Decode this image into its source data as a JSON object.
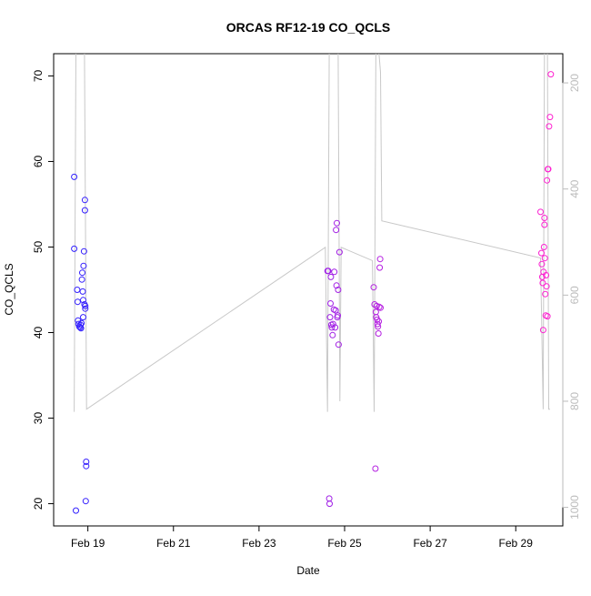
{
  "chart_data": {
    "type": "scatter",
    "title": "ORCAS RF12-19 CO_QCLS",
    "xlabel": "Date",
    "ylabel": "CO_QCLS",
    "x_ticks": [
      "Feb 19",
      "Feb 21",
      "Feb 23",
      "Feb 25",
      "Feb 27",
      "Feb 29"
    ],
    "x_ticks_days": [
      19,
      21,
      23,
      25,
      27,
      29
    ],
    "x_range_days": [
      18.2,
      30.1
    ],
    "y_ticks": [
      "20",
      "30",
      "40",
      "50",
      "60",
      "70"
    ],
    "y_ticks_values": [
      20,
      30,
      40,
      50,
      60,
      70
    ],
    "ylim": [
      17.4,
      72.6
    ],
    "y2_ticks": [
      "200",
      "400",
      "600",
      "800",
      "1000"
    ],
    "y2_ticks_values": [
      200,
      400,
      600,
      800,
      1000
    ],
    "y2lim": [
      1035,
      145
    ],
    "grid": false,
    "legend": "none",
    "colors": {
      "start": "#3020ff",
      "end": "#ff20d0",
      "secondary": "#c8c8c8",
      "axis": "#000000",
      "axis2": "#bbbbbb"
    },
    "series": [
      {
        "values": [
          [
            18.68,
            58.2
          ],
          [
            18.68,
            49.8
          ],
          [
            18.72,
            19.2
          ],
          [
            18.75,
            45.0
          ],
          [
            18.76,
            43.6
          ],
          [
            18.77,
            41.4
          ],
          [
            18.78,
            41.0
          ],
          [
            18.8,
            40.7
          ],
          [
            18.82,
            40.6
          ],
          [
            18.83,
            40.9
          ],
          [
            18.84,
            40.5
          ],
          [
            18.85,
            41.1
          ],
          [
            18.86,
            46.2
          ],
          [
            18.87,
            47.0
          ],
          [
            18.88,
            44.8
          ],
          [
            18.89,
            43.8
          ],
          [
            18.89,
            41.8
          ],
          [
            18.9,
            47.8
          ],
          [
            18.91,
            49.5
          ],
          [
            18.92,
            43.3
          ],
          [
            18.93,
            54.3
          ],
          [
            18.93,
            55.5
          ],
          [
            18.94,
            43.1
          ],
          [
            18.94,
            42.8
          ],
          [
            18.95,
            20.3
          ],
          [
            18.96,
            24.9
          ],
          [
            18.96,
            24.4
          ],
          [
            24.6,
            47.2
          ],
          [
            24.62,
            47.2
          ],
          [
            24.64,
            20.6
          ],
          [
            24.65,
            20.0
          ],
          [
            24.66,
            41.8
          ],
          [
            24.67,
            43.4
          ],
          [
            24.68,
            46.5
          ],
          [
            24.69,
            40.9
          ],
          [
            24.7,
            40.6
          ],
          [
            24.72,
            39.7
          ],
          [
            24.73,
            41.0
          ],
          [
            24.75,
            42.7
          ],
          [
            24.76,
            47.1
          ],
          [
            24.78,
            40.6
          ],
          [
            24.79,
            42.6
          ],
          [
            24.8,
            52.0
          ],
          [
            24.81,
            45.5
          ],
          [
            24.82,
            52.8
          ],
          [
            24.83,
            41.8
          ],
          [
            24.84,
            42.0
          ],
          [
            24.85,
            45.0
          ],
          [
            24.86,
            38.6
          ],
          [
            24.88,
            49.4
          ],
          [
            25.68,
            45.3
          ],
          [
            25.7,
            43.3
          ],
          [
            25.72,
            24.1
          ],
          [
            25.73,
            42.4
          ],
          [
            25.74,
            41.8
          ],
          [
            25.75,
            43.1
          ],
          [
            25.76,
            41.5
          ],
          [
            25.77,
            41.0
          ],
          [
            25.78,
            40.7
          ],
          [
            25.79,
            39.9
          ],
          [
            25.8,
            41.3
          ],
          [
            25.81,
            43.0
          ],
          [
            25.82,
            47.6
          ],
          [
            25.83,
            48.6
          ],
          [
            25.84,
            42.9
          ],
          [
            29.58,
            54.1
          ],
          [
            29.6,
            49.3
          ],
          [
            29.61,
            48.0
          ],
          [
            29.62,
            46.5
          ],
          [
            29.63,
            45.8
          ],
          [
            29.64,
            40.3
          ],
          [
            29.65,
            47.1
          ],
          [
            29.66,
            50.0
          ],
          [
            29.67,
            52.6
          ],
          [
            29.67,
            53.4
          ],
          [
            29.68,
            48.7
          ],
          [
            29.69,
            44.5
          ],
          [
            29.7,
            42.0
          ],
          [
            29.71,
            46.7
          ],
          [
            29.72,
            45.4
          ],
          [
            29.73,
            57.8
          ],
          [
            29.74,
            41.9
          ],
          [
            29.75,
            59.1
          ],
          [
            29.76,
            59.1
          ],
          [
            29.78,
            64.1
          ],
          [
            29.8,
            65.2
          ],
          [
            29.82,
            70.2
          ]
        ]
      }
    ],
    "secondary_line": {
      "values": [
        [
          18.68,
          820
        ],
        [
          18.72,
          140
        ],
        [
          18.76,
          140
        ],
        [
          18.8,
          140
        ],
        [
          18.84,
          140
        ],
        [
          18.88,
          140
        ],
        [
          18.92,
          140
        ],
        [
          18.97,
          815
        ],
        [
          24.55,
          510
        ],
        [
          24.6,
          820
        ],
        [
          24.64,
          140
        ],
        [
          24.68,
          140
        ],
        [
          24.72,
          140
        ],
        [
          24.76,
          140
        ],
        [
          24.8,
          140
        ],
        [
          24.85,
          140
        ],
        [
          24.89,
          800
        ],
        [
          24.92,
          510
        ],
        [
          25.65,
          535
        ],
        [
          25.69,
          820
        ],
        [
          25.73,
          140
        ],
        [
          25.77,
          140
        ],
        [
          25.8,
          140
        ],
        [
          25.84,
          180
        ],
        [
          25.87,
          460
        ],
        [
          29.58,
          530
        ],
        [
          29.64,
          815
        ],
        [
          29.67,
          140
        ],
        [
          29.71,
          140
        ],
        [
          29.74,
          140
        ],
        [
          29.77,
          815
        ],
        [
          29.8,
          815
        ]
      ]
    }
  }
}
